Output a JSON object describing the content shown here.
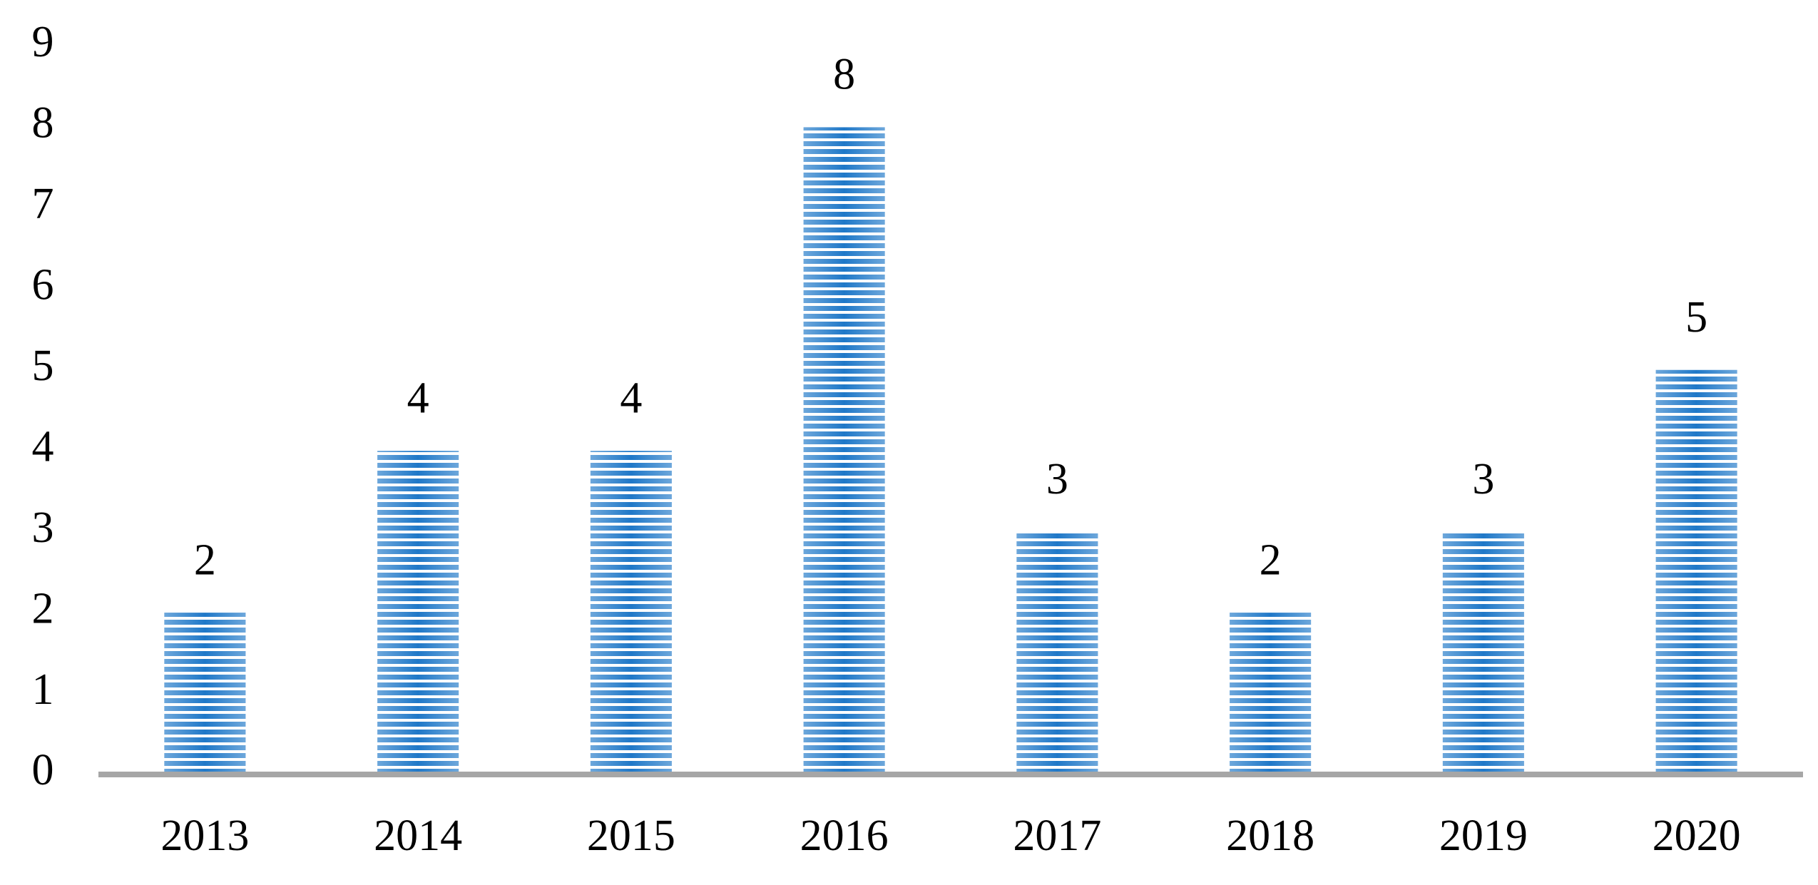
{
  "chart_data": {
    "type": "bar",
    "categories": [
      "2013",
      "2014",
      "2015",
      "2016",
      "2017",
      "2018",
      "2019",
      "2020"
    ],
    "values": [
      2,
      4,
      4,
      8,
      3,
      2,
      3,
      5
    ],
    "color": "#1f78c8",
    "ylim": [
      0,
      9
    ],
    "yticks": [
      0,
      1,
      2,
      3,
      4,
      5,
      6,
      7,
      8,
      9
    ],
    "grid": false
  }
}
